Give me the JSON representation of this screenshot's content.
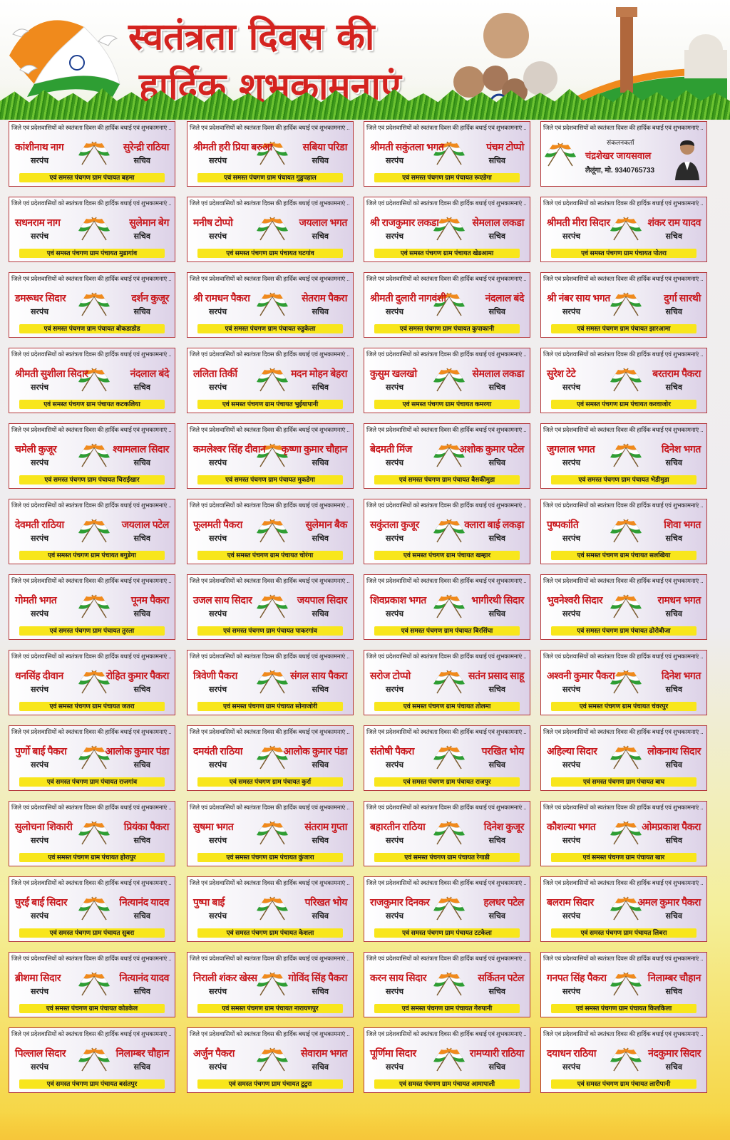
{
  "header": {
    "title_line1": "स्वतंत्रता दिवस की",
    "title_line2": "हार्दिक शुभकामनाएं"
  },
  "card_top_text": "जिले एवं प्रदेशवासियों को स्वतंत्रता दिवस की हार्दिक बधाई एवं शुभकामनाएं ..",
  "role_sarpanch": "सरपंच",
  "role_sachiv": "सचिव",
  "special": {
    "label": "संकलनकर्ता",
    "name": "चंद्रशेखर जायसवाल",
    "phone": "लैलूंगा, मो. 9340765733"
  },
  "cards": [
    {
      "n1": "कांशीनाथ नाग",
      "n2": "सुरेन्द्री राठिया",
      "gp": "एवं समस्त पंचगण ग्राम पंचायत बहमा"
    },
    {
      "n1": "श्रीमती हरी प्रिया बरुआ",
      "n2": "सबिया परिडा",
      "gp": "एवं समस्त पंचगण ग्राम पंचायत गुडुपहाल"
    },
    {
      "n1": "श्रीमती सकुंतला भगत",
      "n2": "पंचम टोप्पो",
      "gp": "एवं समस्त पंचगण ग्राम पंचायत रूएडेगा"
    },
    {
      "special": true
    },
    {
      "n1": "सधनराम नाग",
      "n2": "सुलेमान बेग",
      "gp": "एवं समस्त पंचगण ग्राम पंचायत मुडागांव"
    },
    {
      "n1": "मनीष टोप्पो",
      "n2": "जयलाल भगत",
      "gp": "एवं समस्त पंचगण ग्राम पंचायत घटगांव"
    },
    {
      "n1": "श्री राजकुमार लकडा",
      "n2": "सेमलाल लकडा",
      "gp": "एवं समस्त पंचगण ग्राम पंचायत खेडआमा"
    },
    {
      "n1": "श्रीमती मीरा सिदार",
      "n2": "शंकर राम यादव",
      "gp": "एवं समस्त पंचगण ग्राम पंचायत पोतरा"
    },
    {
      "n1": "डमरूधर सिदार",
      "n2": "दर्शन कुजूर",
      "gp": "एवं समस्त पंचगण ग्राम पंचायत बोकडाडोड"
    },
    {
      "n1": "श्री रामधन पैकरा",
      "n2": "सेतराम पैकरा",
      "gp": "एवं समस्त पंचगण ग्राम पंचायत रुडुकेला"
    },
    {
      "n1": "श्रीमती दुलारी नागवंशी",
      "n2": "नंदलाल बंदे",
      "gp": "एवं समस्त पंचगण ग्राम पंचायत कुपाकानी"
    },
    {
      "n1": "श्री नंबर साय भगत",
      "n2": "दुर्गा सारथी",
      "gp": "एवं समस्त पंचगण ग्राम पंचायत झारआमा"
    },
    {
      "n1": "श्रीमती सुशीला सिदार",
      "n2": "नंदलाल बंदे",
      "gp": "एवं समस्त पंचगण ग्राम पंचायत कटकलिया"
    },
    {
      "n1": "ललिता तिर्की",
      "n2": "मदन मोहन बेहरा",
      "gp": "एवं समस्त पंचगण ग्राम पंचायत भुईयापानी"
    },
    {
      "n1": "कुसुम खलखो",
      "n2": "सेमलाल लकडा",
      "gp": "एवं समस्त पंचगण ग्राम पंचायत कमरगा"
    },
    {
      "n1": "सुरेश टेटे",
      "n2": "बरतराम पैकरा",
      "gp": "एवं समस्त पंचगण ग्राम पंचायत करवाजोर"
    },
    {
      "n1": "चमेली कुजूर",
      "n2": "श्यामलाल सिदार",
      "gp": "एवं समस्त पंचगण ग्राम पंचायत चिराईखार"
    },
    {
      "n1": "कमलेश्वर सिंह दीवान",
      "n2": "कृष्णा कुमार चौहान",
      "gp": "एवं समस्त पंचगण ग्राम पंचायत मुकडेगा"
    },
    {
      "n1": "बेदमती मिंज",
      "n2": "अशोक कुमार पटेल",
      "gp": "एवं समस्त पंचगण ग्राम पंचायत बैसकीमुडा"
    },
    {
      "n1": "जुगलाल भगत",
      "n2": "दिनेश भगत",
      "gp": "एवं समस्त पंचगण ग्राम पंचायत भेडीमुडा"
    },
    {
      "n1": "देवमती राठिया",
      "n2": "जयलाल पटेल",
      "gp": "एवं समस्त पंचगण ग्राम पंचायत बगुडेगा"
    },
    {
      "n1": "फूलमती पैकरा",
      "n2": "सुलेमान बैक",
      "gp": "एवं समस्त पंचगण ग्राम पंचायत चोरंगा"
    },
    {
      "n1": "सकुंतला कुजूर",
      "n2": "क्लारा बाई लकड़ा",
      "gp": "एवं समस्त पंचगण ग्राम पंचायत खम्हार"
    },
    {
      "n1": "पुष्पकांति",
      "n2": "शिवा भगत",
      "gp": "एवं समस्त पंचगण ग्राम पंचायत सलखिया"
    },
    {
      "n1": "गोमती भगत",
      "n2": "पूनम पैकरा",
      "gp": "एवं समस्त पंचगण ग्राम पंचायत तुरला"
    },
    {
      "n1": "उजल साय सिदार",
      "n2": "जयपाल सिदार",
      "gp": "एवं समस्त पंचगण ग्राम पंचायत पाकरगांव"
    },
    {
      "n1": "शिवप्रकाश भगत",
      "n2": "भागीरथी सिदार",
      "gp": "एवं समस्त पंचगण ग्राम पंचायत बिरसिंघा"
    },
    {
      "n1": "भुवनेश्वरी सिदार",
      "n2": "रामधन भगत",
      "gp": "एवं समस्त पंचगण ग्राम पंचायत ढोरोबीजा"
    },
    {
      "n1": "धनसिंह दीवान",
      "n2": "रोहित कुमार पैकरा",
      "gp": "एवं समस्त पंचगण ग्राम पंचायत जतरा"
    },
    {
      "n1": "त्रिवेणी पैकरा",
      "n2": "संगल साय पैकरा",
      "gp": "एवं समस्त पंचगण ग्राम पंचायत सोनाजोरी"
    },
    {
      "n1": "सरोज टोप्पो",
      "n2": "सतंन प्रसाद साहू",
      "gp": "एवं समस्त पंचगण ग्राम पंचायत तोलमा"
    },
    {
      "n1": "अश्वनी कुमार पैकरा",
      "n2": "दिनेश भगत",
      "gp": "एवं समस्त पंचगण ग्राम पंचायत चंवरपुर"
    },
    {
      "n1": "पुर्णो बाई पैकरा",
      "n2": "आलोक कुमार पंडा",
      "gp": "एवं समस्त पंचगण ग्राम पंचायत राजगांव"
    },
    {
      "n1": "दमयंती राठिया",
      "n2": "आलोक कुमार पंडा",
      "gp": "एवं समस्त पंचगण ग्राम पंचायत कुर्रा"
    },
    {
      "n1": "संतोषी पैकरा",
      "n2": "परखित भोय",
      "gp": "एवं समस्त पंचगण ग्राम पंचायत राजपुर"
    },
    {
      "n1": "अहिल्या सिदार",
      "n2": "लोकनाथ सिदार",
      "gp": "एवं समस्त पंचगण ग्राम पंचायत बाघ"
    },
    {
      "n1": "सुलोचना शिकारी",
      "n2": "प्रियंका पैकरा",
      "gp": "एवं समस्त पंचगण ग्राम पंचायत होरापुर"
    },
    {
      "n1": "सुषमा भगत",
      "n2": "संतराम गुप्ता",
      "gp": "एवं समस्त पंचगण ग्राम पंचायत कुंजारा"
    },
    {
      "n1": "बहारतीन राठिया",
      "n2": "दिनेश कुजूर",
      "gp": "एवं समस्त पंचगण ग्राम पंचायत रेगाडी"
    },
    {
      "n1": "कौशल्या भगत",
      "n2": "ओमप्रकाश पैकरा",
      "gp": "एवं समस्त पंचगण ग्राम पंचायत खार"
    },
    {
      "n1": "घुरई बाई सिदार",
      "n2": "नित्यानंद यादव",
      "gp": "एवं समस्त पंचगण ग्राम पंचायत सुबरा"
    },
    {
      "n1": "पुष्पा बाई",
      "n2": "परिखत भोय",
      "gp": "एवं समस्त पंचगण ग्राम पंचायत केशला"
    },
    {
      "n1": "राजकुमार दिनकर",
      "n2": "हलधर पटेल",
      "gp": "एवं समस्त पंचगण ग्राम पंचायत टटकेला"
    },
    {
      "n1": "बलराम सिदार",
      "n2": "अमल कुमार पैकरा",
      "gp": "एवं समस्त पंचगण ग्राम पंचायत लिबरा"
    },
    {
      "n1": "ब्रीशमा सिदार",
      "n2": "नित्यानंद यादव",
      "gp": "एवं समस्त पंचगण ग्राम पंचायत कोडकेल"
    },
    {
      "n1": "निराली शंकर खेस्स",
      "n2": "गोविंद सिंह पैकरा",
      "gp": "एवं समस्त पंचगण ग्राम पंचायत नारायणपुर"
    },
    {
      "n1": "करन साय सिदार",
      "n2": "सर्कितन पटेल",
      "gp": "एवं समस्त पंचगण ग्राम पंचायत गेरुपानी"
    },
    {
      "n1": "गनपत सिंह पैकरा",
      "n2": "निलाम्बर चौहान",
      "gp": "एवं समस्त पंचगण ग्राम पंचायत किलकिला"
    },
    {
      "n1": "पिल्लाल सिदार",
      "n2": "निलाम्बर चौहान",
      "gp": "एवं समस्त पंचगण ग्राम पंचायत बसंतपुर"
    },
    {
      "n1": "अर्जुन पैकरा",
      "n2": "सेवाराम भगत",
      "gp": "एवं समस्त पंचगण ग्राम पंचायत टुटुरा"
    },
    {
      "n1": "पूर्णिमा सिदार",
      "n2": "रामप्यारी राठिया",
      "gp": "एवं समस्त पंचगण ग्राम पंचायत आमापाली"
    },
    {
      "n1": "दयाधन राठिया",
      "n2": "नंदकुमार सिदार",
      "gp": "एवं समस्त पंचगण ग्राम पंचायत लारीपानी"
    }
  ]
}
